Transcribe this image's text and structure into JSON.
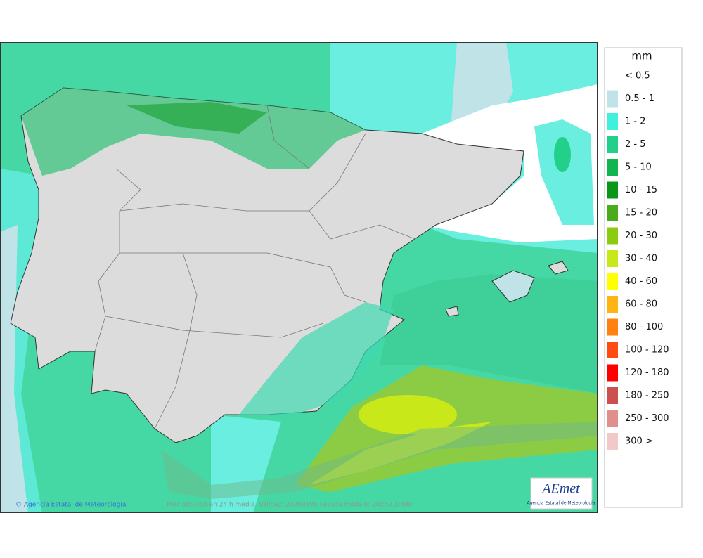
{
  "legend": {
    "title": "mm",
    "items": [
      {
        "label": "< 0.5",
        "color": null
      },
      {
        "label": "0.5 - 1",
        "color": "#bfe3e6"
      },
      {
        "label": "1 - 2",
        "color": "#3ff0dc"
      },
      {
        "label": "2 - 5",
        "color": "#22d08a"
      },
      {
        "label": "5 - 10",
        "color": "#12b450"
      },
      {
        "label": "10 - 15",
        "color": "#0a9616"
      },
      {
        "label": "15 - 20",
        "color": "#48ac1c"
      },
      {
        "label": "20 - 30",
        "color": "#8ccc10"
      },
      {
        "label": "30 - 40",
        "color": "#c8e81a"
      },
      {
        "label": "40 - 60",
        "color": "#ffff00"
      },
      {
        "label": "60 - 80",
        "color": "#ffb412"
      },
      {
        "label": "80 - 100",
        "color": "#ff8210"
      },
      {
        "label": "100 - 120",
        "color": "#ff4a10"
      },
      {
        "label": "120 - 180",
        "color": "#ff0000"
      },
      {
        "label": "180 - 250",
        "color": "#cc5050"
      },
      {
        "label": "250 - 300",
        "color": "#e08e8e"
      },
      {
        "label": "300 >",
        "color": "#f2c8c8"
      }
    ]
  },
  "footer": {
    "credit": "© Agencia Estatal de Meteorología",
    "caption": "Precipitación en 24 h media. Validez: 20260105 Pasada modelo: 2026010400"
  },
  "logo": {
    "name": "AEmet",
    "subtitle": "Agencia Estatal de Meteorología"
  }
}
